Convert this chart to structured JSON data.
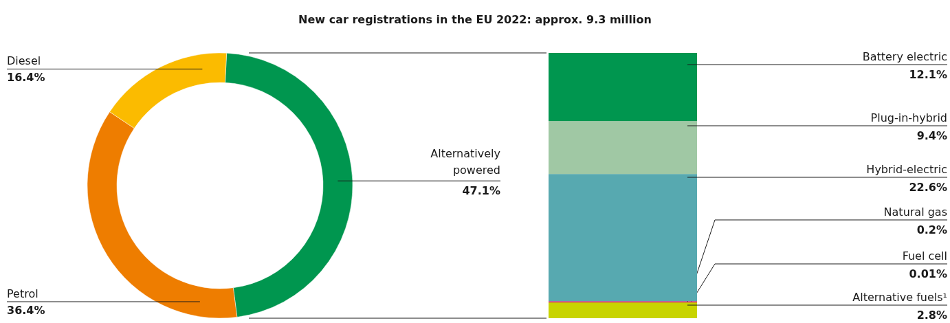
{
  "chart_data": [
    {
      "type": "donut",
      "title": "New car registrations in the EU 2022: approx. 9.3 million",
      "categories": [
        "Diesel",
        "Petrol",
        "Alternatively powered"
      ],
      "values": [
        16.4,
        36.4,
        47.1
      ],
      "colors": [
        "#fbbb00",
        "#ee7d00",
        "#00964f"
      ],
      "value_labels": [
        "16.4%",
        "36.4%",
        "47.1%"
      ]
    },
    {
      "type": "bar",
      "stacked": true,
      "categories": [
        null
      ],
      "series": [
        {
          "name": "Alternative fuels¹",
          "color": "#c8d400",
          "values": [
            2.8
          ],
          "value_labels": [
            "2.8%"
          ]
        },
        {
          "name": "Fuel cell",
          "color": "#8c1d40",
          "values": [
            0.01
          ],
          "value_labels": [
            "0.01%"
          ]
        },
        {
          "name": "Natural gas",
          "color": "#e5006e",
          "values": [
            0.2
          ],
          "value_labels": [
            "0.2%"
          ]
        },
        {
          "name": "Hybrid-electric",
          "color": "#57a9b0",
          "values": [
            22.6
          ],
          "value_labels": [
            "22.6%"
          ]
        },
        {
          "name": "Plug-in-hybrid",
          "color": "#a0c8a4",
          "values": [
            9.4
          ],
          "value_labels": [
            "9.4%"
          ]
        },
        {
          "name": "Battery electric",
          "color": "#00964f",
          "values": [
            12.1
          ],
          "value_labels": [
            "12.1%"
          ]
        }
      ]
    }
  ]
}
